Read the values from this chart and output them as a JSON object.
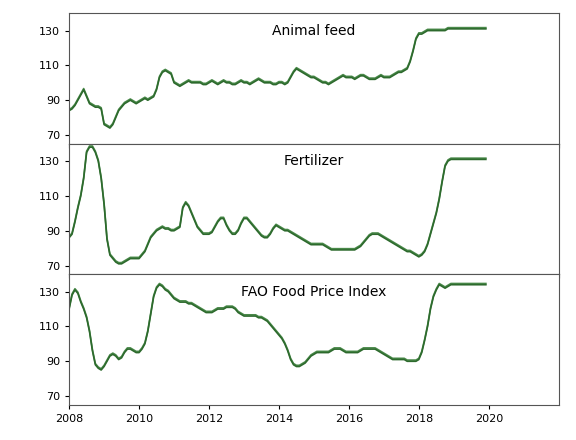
{
  "title1": "Animal feed",
  "title2": "Fertilizer",
  "title3": "FAO Food Price Index",
  "line_color": "#2d6a2d",
  "line_color2": "#4a8a4a",
  "line_width": 1.2,
  "ylim": [
    65,
    140
  ],
  "yticks": [
    70,
    90,
    110,
    130
  ],
  "start_year": 2008,
  "end_year": 2022.0,
  "background_color": "#ffffff",
  "border_color": "#888888",
  "animal_feed": [
    84,
    85,
    87,
    90,
    93,
    96,
    92,
    88,
    87,
    86,
    86,
    85,
    76,
    75,
    74,
    76,
    80,
    84,
    86,
    88,
    89,
    90,
    89,
    88,
    89,
    90,
    91,
    90,
    91,
    92,
    96,
    103,
    106,
    107,
    106,
    105,
    100,
    99,
    98,
    99,
    100,
    101,
    100,
    100,
    100,
    100,
    99,
    99,
    100,
    101,
    100,
    99,
    100,
    101,
    100,
    100,
    99,
    99,
    100,
    101,
    100,
    100,
    99,
    100,
    101,
    102,
    101,
    100,
    100,
    100,
    99,
    99,
    100,
    100,
    99,
    100,
    103,
    106,
    108,
    107,
    106,
    105,
    104,
    103,
    103,
    102,
    101,
    100,
    100,
    99,
    100,
    101,
    102,
    103,
    104,
    103,
    103,
    103,
    102,
    103,
    104,
    104,
    103,
    102,
    102,
    102,
    103,
    104,
    103,
    103,
    103,
    104,
    105,
    106,
    106,
    107,
    108,
    112,
    118,
    125,
    128,
    128,
    129,
    130,
    130,
    130,
    130,
    130,
    130,
    130,
    131,
    131,
    131,
    131,
    131,
    131,
    131,
    131,
    131,
    131,
    131,
    131,
    131,
    131
  ],
  "fertilizer": [
    86,
    88,
    95,
    103,
    110,
    120,
    135,
    138,
    138,
    135,
    130,
    120,
    105,
    85,
    76,
    74,
    72,
    71,
    71,
    72,
    73,
    74,
    74,
    74,
    74,
    76,
    78,
    82,
    86,
    88,
    90,
    91,
    92,
    91,
    91,
    90,
    90,
    91,
    92,
    103,
    106,
    104,
    100,
    96,
    92,
    90,
    88,
    88,
    88,
    89,
    92,
    95,
    97,
    97,
    93,
    90,
    88,
    88,
    90,
    94,
    97,
    97,
    95,
    93,
    91,
    89,
    87,
    86,
    86,
    88,
    91,
    93,
    92,
    91,
    90,
    90,
    89,
    88,
    87,
    86,
    85,
    84,
    83,
    82,
    82,
    82,
    82,
    82,
    81,
    80,
    79,
    79,
    79,
    79,
    79,
    79,
    79,
    79,
    79,
    80,
    81,
    83,
    85,
    87,
    88,
    88,
    88,
    87,
    86,
    85,
    84,
    83,
    82,
    81,
    80,
    79,
    78,
    78,
    77,
    76,
    75,
    76,
    78,
    82,
    88,
    94,
    100,
    108,
    118,
    127,
    130,
    131,
    131,
    131,
    131,
    131,
    131,
    131,
    131,
    131,
    131,
    131,
    131,
    131
  ],
  "fao_food": [
    120,
    128,
    131,
    129,
    124,
    120,
    115,
    107,
    96,
    88,
    86,
    85,
    87,
    90,
    93,
    94,
    93,
    91,
    92,
    95,
    97,
    97,
    96,
    95,
    95,
    97,
    100,
    107,
    117,
    127,
    132,
    134,
    133,
    131,
    130,
    128,
    126,
    125,
    124,
    124,
    124,
    123,
    123,
    122,
    121,
    120,
    119,
    118,
    118,
    118,
    119,
    120,
    120,
    120,
    121,
    121,
    121,
    120,
    118,
    117,
    116,
    116,
    116,
    116,
    116,
    115,
    115,
    114,
    113,
    111,
    109,
    107,
    105,
    103,
    100,
    96,
    91,
    88,
    87,
    87,
    88,
    89,
    91,
    93,
    94,
    95,
    95,
    95,
    95,
    95,
    96,
    97,
    97,
    97,
    96,
    95,
    95,
    95,
    95,
    95,
    96,
    97,
    97,
    97,
    97,
    97,
    96,
    95,
    94,
    93,
    92,
    91,
    91,
    91,
    91,
    91,
    90,
    90,
    90,
    90,
    91,
    95,
    102,
    110,
    120,
    127,
    131,
    134,
    133,
    132,
    133,
    134,
    134,
    134,
    134,
    134,
    134,
    134,
    134,
    134,
    134,
    134,
    134,
    134
  ],
  "xticks": [
    2008,
    2010,
    2012,
    2014,
    2016,
    2018,
    2020
  ],
  "xtick_labels": [
    "2008",
    "2010",
    "2012",
    "2014",
    "2016",
    "2018",
    "2020"
  ]
}
